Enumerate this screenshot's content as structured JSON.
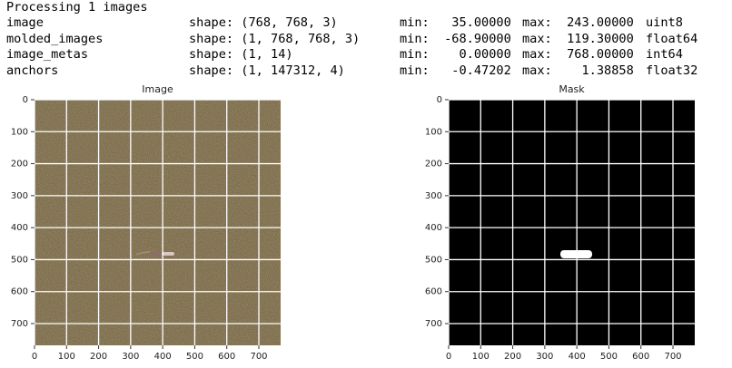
{
  "log": {
    "header": "Processing 1 images",
    "rows": [
      {
        "name": "image",
        "shape": "shape: (768, 768, 3)",
        "min": "min:   35.00000",
        "max": "max:  243.00000",
        "dtype": "uint8"
      },
      {
        "name": "molded_images",
        "shape": "shape: (1, 768, 768, 3)",
        "min": "min:  -68.90000",
        "max": "max:  119.30000",
        "dtype": "float64"
      },
      {
        "name": "image_metas",
        "shape": "shape: (1, 14)",
        "min": "min:    0.00000",
        "max": "max:  768.00000",
        "dtype": "int64"
      },
      {
        "name": "anchors",
        "shape": "shape: (1, 147312, 4)",
        "min": "min:   -0.47202",
        "max": "max:    1.38858",
        "dtype": "float32"
      }
    ]
  },
  "panels": [
    {
      "title": "Image",
      "xlim": [
        0,
        768
      ],
      "ylim": [
        768,
        0
      ],
      "xticks": [
        0,
        100,
        200,
        300,
        400,
        500,
        600,
        700
      ],
      "yticks": [
        0,
        100,
        200,
        300,
        400,
        500,
        600,
        700
      ],
      "grid": true
    },
    {
      "title": "Mask",
      "xlim": [
        0,
        768
      ],
      "ylim": [
        768,
        0
      ],
      "xticks": [
        0,
        100,
        200,
        300,
        400,
        500,
        600,
        700
      ],
      "yticks": [
        0,
        100,
        200,
        300,
        400,
        500,
        600,
        700
      ],
      "grid": true
    }
  ]
}
